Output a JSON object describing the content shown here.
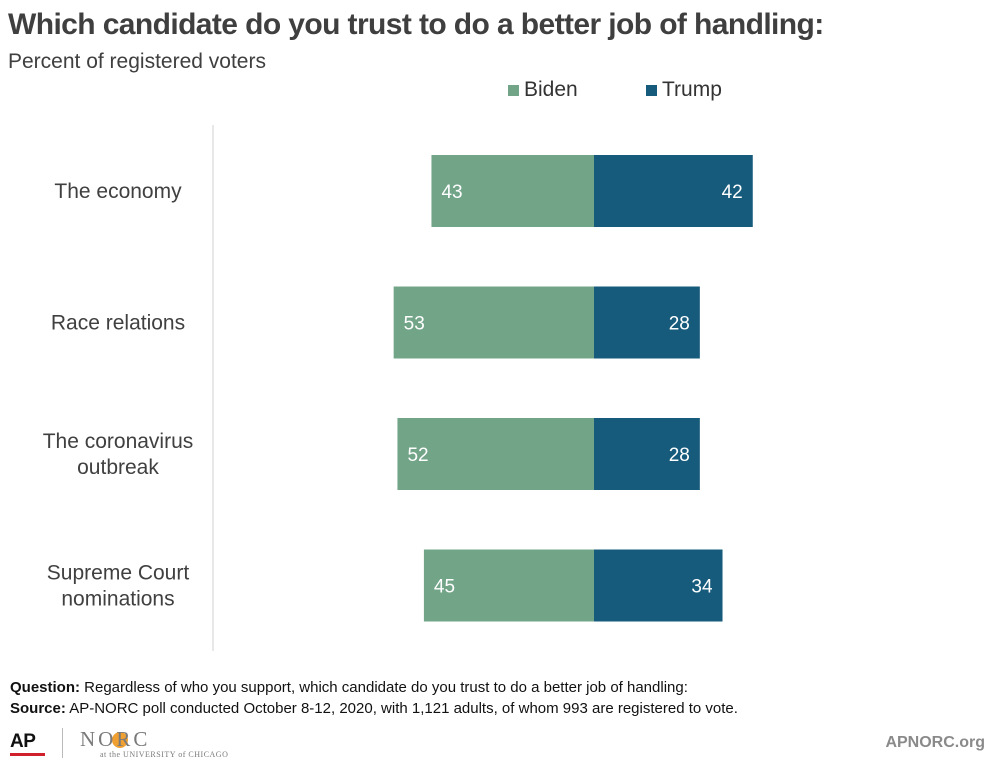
{
  "chart_data": {
    "type": "bar",
    "orientation": "horizontal-diverging-stacked",
    "title": "Which candidate do you trust to do a better job of handling:",
    "subtitle": "Percent of registered voters",
    "categories": [
      [
        "The economy"
      ],
      [
        "Race relations"
      ],
      [
        "The coronavirus",
        "outbreak"
      ],
      [
        "Supreme Court",
        "nominations"
      ]
    ],
    "series": [
      {
        "name": "Biden",
        "values": [
          43,
          53,
          52,
          45
        ],
        "color": "#72a488"
      },
      {
        "name": "Trump",
        "values": [
          42,
          28,
          28,
          34
        ],
        "color": "#165b7c"
      }
    ],
    "legend_position": "top-right",
    "grid": false
  },
  "footer": {
    "question_label": "Question:",
    "question_text": " Regardless of who you support, which candidate do you trust to do a better job of handling:",
    "source_label": "Source:",
    "source_text": " AP-NORC poll conducted October 8-12, 2020, with 1,121 adults, of whom 993 are registered to vote."
  },
  "logos": {
    "ap": "AP",
    "norc": "NORC",
    "norc_sub": "at the UNIVERSITY of CHICAGO",
    "url": "APNORC.org"
  }
}
